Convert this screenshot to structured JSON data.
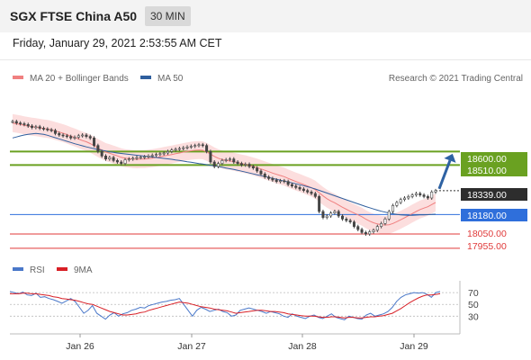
{
  "header": {
    "title": "SGX FTSE China A50",
    "interval": "30 MIN"
  },
  "timestamp": "Friday, January 29, 2021 2:53:55 AM CET",
  "credit": "Research © 2021 Trading Central",
  "legend": {
    "ma20": "MA 20 + Bollinger Bands",
    "ma50": "MA 50",
    "rsi": "RSI",
    "rsi_ma": "9MA"
  },
  "colors": {
    "ma20": "#f08080",
    "ma50": "#2f5f9e",
    "band_fill": "#fbd6d6",
    "candle": "#444444",
    "green_level": "#6aa121",
    "blue_level": "#2f6fdb",
    "red_level": "#e03a3a",
    "last_price": "#2d2d2d",
    "arrow": "#2e62a3",
    "rsi": "#4a78c9",
    "rsi_ma": "#d81f26"
  },
  "chart_data": [
    {
      "type": "candlestick",
      "title": "SGX FTSE China A50",
      "x_ticks": [
        "Jan 26",
        "Jan 27",
        "Jan 28",
        "Jan 29"
      ],
      "ylim": [
        17900,
        18950
      ],
      "levels": [
        {
          "value": 18600.0,
          "label": "18600.00",
          "kind": "resistance"
        },
        {
          "value": 18510.0,
          "label": "18510.00",
          "kind": "resistance"
        },
        {
          "value": 18339.0,
          "label": "18339.00",
          "kind": "last"
        },
        {
          "value": 18180.0,
          "label": "18180.00",
          "kind": "pivot"
        },
        {
          "value": 18050.0,
          "label": "18050.00",
          "kind": "support"
        },
        {
          "value": 17955.0,
          "label": "17955.00",
          "kind": "support"
        }
      ],
      "close": [
        18800,
        18790,
        18785,
        18780,
        18770,
        18760,
        18765,
        18755,
        18750,
        18745,
        18740,
        18720,
        18710,
        18705,
        18700,
        18690,
        18695,
        18705,
        18710,
        18700,
        18690,
        18640,
        18600,
        18570,
        18550,
        18560,
        18540,
        18530,
        18520,
        18545,
        18550,
        18555,
        18560,
        18562,
        18565,
        18570,
        18575,
        18580,
        18585,
        18590,
        18600,
        18610,
        18615,
        18620,
        18625,
        18630,
        18635,
        18640,
        18645,
        18640,
        18600,
        18530,
        18500,
        18520,
        18540,
        18545,
        18550,
        18530,
        18520,
        18510,
        18515,
        18500,
        18490,
        18470,
        18450,
        18430,
        18420,
        18410,
        18400,
        18405,
        18400,
        18380,
        18370,
        18360,
        18350,
        18340,
        18330,
        18320,
        18300,
        18200,
        18160,
        18170,
        18190,
        18200,
        18170,
        18150,
        18140,
        18130,
        18100,
        18080,
        18060,
        18050,
        18065,
        18075,
        18100,
        18120,
        18150,
        18200,
        18240,
        18260,
        18280,
        18290,
        18300,
        18310,
        18320,
        18310,
        18300,
        18290,
        18330,
        18339
      ],
      "ma20": [
        18790,
        18785,
        18780,
        18775,
        18770,
        18765,
        18762,
        18758,
        18754,
        18750,
        18745,
        18737,
        18730,
        18722,
        18713,
        18703,
        18693,
        18683,
        18673,
        18665,
        18653,
        18638,
        18623,
        18609,
        18596,
        18588,
        18580,
        18571,
        18561,
        18556,
        18552,
        18549,
        18548,
        18549,
        18550,
        18553,
        18556,
        18560,
        18565,
        18570,
        18575,
        18580,
        18585,
        18590,
        18596,
        18601,
        18605,
        18608,
        18610,
        18608,
        18598,
        18583,
        18567,
        18555,
        18546,
        18541,
        18537,
        18532,
        18526,
        18520,
        18515,
        18508,
        18500,
        18492,
        18484,
        18475,
        18466,
        18456,
        18448,
        18440,
        18432,
        18421,
        18410,
        18400,
        18390,
        18380,
        18370,
        18359,
        18345,
        18325,
        18304,
        18285,
        18270,
        18258,
        18243,
        18228,
        18215,
        18202,
        18190,
        18178,
        18165,
        18149,
        18136,
        18125,
        18117,
        18112,
        18110,
        18112,
        18120,
        18132,
        18145,
        18158,
        18172,
        18186,
        18200,
        18213,
        18223,
        18232,
        18246,
        18260
      ],
      "ma50": [
        18690,
        18697,
        18704,
        18710,
        18715,
        18718,
        18720,
        18718,
        18714,
        18708,
        18700,
        18692,
        18684,
        18676,
        18668,
        18660,
        18652,
        18645,
        18638,
        18631,
        18625,
        18619,
        18613,
        18608,
        18603,
        18598,
        18594,
        18590,
        18587,
        18584,
        18581,
        18578,
        18575,
        18572,
        18569,
        18566,
        18563,
        18560,
        18557,
        18554,
        18551,
        18548,
        18544,
        18540,
        18536,
        18532,
        18528,
        18524,
        18520,
        18516,
        18512,
        18508,
        18504,
        18500,
        18495,
        18490,
        18485,
        18480,
        18475,
        18469,
        18463,
        18457,
        18451,
        18445,
        18439,
        18433,
        18427,
        18421,
        18415,
        18409,
        18403,
        18397,
        18391,
        18385,
        18379,
        18372,
        18365,
        18358,
        18350,
        18341,
        18332,
        18323,
        18314,
        18305,
        18296,
        18287,
        18278,
        18269,
        18260,
        18251,
        18242,
        18233,
        18225,
        18217,
        18209,
        18202,
        18196,
        18190,
        18185,
        18181,
        18178,
        18176,
        18175,
        18175,
        18176,
        18177,
        18178,
        18179,
        18180,
        18182
      ]
    },
    {
      "type": "line",
      "title": "RSI",
      "x_ticks": [
        "Jan 26",
        "Jan 27",
        "Jan 28",
        "Jan 29"
      ],
      "y_ticks": [
        70,
        50,
        30
      ],
      "ylim": [
        0,
        90
      ],
      "series": [
        {
          "name": "RSI",
          "values": [
            72,
            70,
            68,
            71,
            66,
            65,
            69,
            62,
            63,
            60,
            58,
            55,
            52,
            56,
            60,
            55,
            45,
            35,
            40,
            48,
            35,
            30,
            25,
            32,
            36,
            30,
            34,
            36,
            40,
            42,
            45,
            44,
            48,
            50,
            52,
            54,
            55,
            57,
            58,
            60,
            50,
            40,
            30,
            40,
            45,
            42,
            38,
            40,
            42,
            38,
            36,
            30,
            32,
            40,
            42,
            44,
            42,
            40,
            38,
            35,
            38,
            36,
            34,
            30,
            28,
            34,
            30,
            28,
            26,
            30,
            32,
            28,
            26,
            30,
            34,
            28,
            26,
            24,
            30,
            28,
            26,
            25,
            32,
            35,
            30,
            32,
            34,
            38,
            45,
            55,
            62,
            66,
            68,
            70,
            69,
            70,
            67,
            62,
            70,
            72
          ]
        },
        {
          "name": "9MA",
          "values": [
            68,
            68,
            68,
            69,
            69,
            68,
            68,
            67,
            66,
            65,
            63,
            62,
            60,
            59,
            58,
            57,
            55,
            53,
            51,
            50,
            47,
            44,
            41,
            38,
            36,
            34,
            32,
            32,
            33,
            34,
            36,
            37,
            40,
            42,
            44,
            46,
            48,
            50,
            52,
            54,
            53,
            52,
            50,
            48,
            46,
            45,
            44,
            42,
            41,
            40,
            39,
            37,
            35,
            36,
            37,
            38,
            39,
            40,
            40,
            39,
            38,
            38,
            37,
            36,
            34,
            33,
            32,
            31,
            30,
            30,
            30,
            29,
            28,
            28,
            29,
            29,
            28,
            27,
            28,
            28,
            27,
            27,
            28,
            29,
            29,
            30,
            31,
            33,
            35,
            39,
            43,
            48,
            53,
            57,
            61,
            64,
            66,
            66,
            67,
            68
          ]
        }
      ]
    }
  ]
}
